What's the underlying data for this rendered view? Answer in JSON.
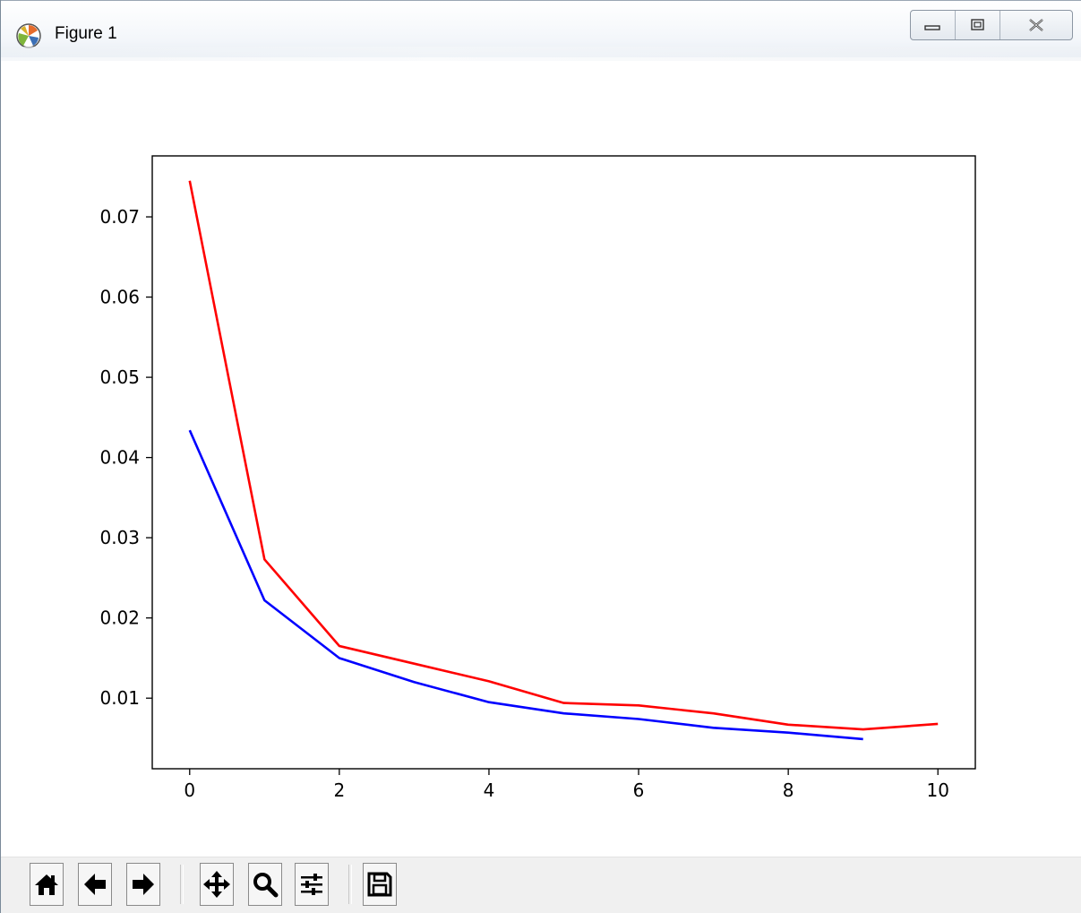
{
  "window": {
    "title": "Figure 1",
    "icon": "matplotlib-logo-icon",
    "controls": [
      "minimize-icon",
      "maximize-icon",
      "close-icon"
    ]
  },
  "toolbar": {
    "buttons": [
      {
        "name": "home-button",
        "icon": "home-icon"
      },
      {
        "name": "back-button",
        "icon": "arrow-left-icon"
      },
      {
        "name": "forward-button",
        "icon": "arrow-right-icon"
      },
      {
        "name": "pan-button",
        "icon": "move-icon"
      },
      {
        "name": "zoom-button",
        "icon": "magnifier-icon"
      },
      {
        "name": "subplots-button",
        "icon": "sliders-icon"
      },
      {
        "name": "save-button",
        "icon": "floppy-disk-icon"
      }
    ]
  },
  "chart_data": {
    "type": "line",
    "title": "",
    "xlabel": "",
    "ylabel": "",
    "xlim": [
      -0.5,
      10.5
    ],
    "ylim": [
      0.0012,
      0.0776
    ],
    "xticks": [
      0,
      2,
      4,
      6,
      8,
      10
    ],
    "xtick_labels": [
      "0",
      "2",
      "4",
      "6",
      "8",
      "10"
    ],
    "yticks": [
      0.01,
      0.02,
      0.03,
      0.04,
      0.05,
      0.06,
      0.07
    ],
    "ytick_labels": [
      "0.01",
      "0.02",
      "0.03",
      "0.04",
      "0.05",
      "0.06",
      "0.07"
    ],
    "grid": false,
    "legend": "none",
    "series": [
      {
        "color": "#ff0000",
        "x": [
          0,
          1,
          2,
          3,
          4,
          5,
          6,
          7,
          8,
          9,
          10
        ],
        "y": [
          0.0745,
          0.0273,
          0.0165,
          0.0143,
          0.0121,
          0.0094,
          0.0091,
          0.0081,
          0.0067,
          0.0061,
          0.0068
        ]
      },
      {
        "color": "#0000ff",
        "x": [
          0,
          1,
          2,
          3,
          4,
          5,
          6,
          7,
          8,
          9
        ],
        "y": [
          0.0434,
          0.0222,
          0.015,
          0.012,
          0.0095,
          0.0081,
          0.0074,
          0.0063,
          0.0057,
          0.0049
        ]
      }
    ]
  }
}
